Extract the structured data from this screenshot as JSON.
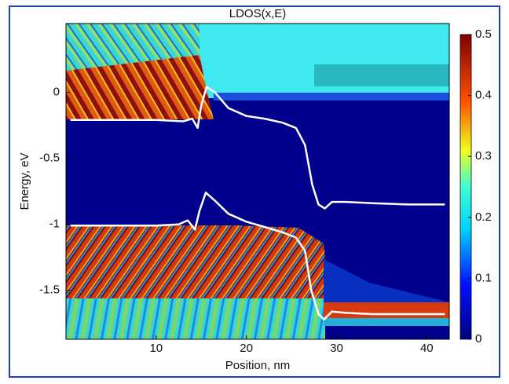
{
  "chart_data": {
    "type": "line",
    "title": "LDOS(x,E)",
    "x_label": "Position, nm",
    "y_label": "Energy, eV",
    "xlim": [
      0,
      42.5
    ],
    "ylim": [
      -1.87,
      0.52
    ],
    "xticks": [
      10,
      20,
      30,
      40
    ],
    "yticks": [
      -1.5,
      -1,
      -0.5,
      0
    ],
    "colorbar": {
      "lim": [
        0,
        0.5
      ],
      "ticks": [
        0,
        0.1,
        0.2,
        0.3,
        0.4,
        0.5
      ]
    },
    "series": [
      {
        "color": "#ffffff",
        "x": [
          0.5,
          5,
          10,
          13,
          14,
          14.6,
          15,
          15.6,
          16.5,
          18,
          20,
          22,
          24,
          25.5,
          26.5,
          27.3,
          28,
          28.7,
          29.5,
          31,
          34,
          38,
          42
        ],
        "values": [
          -0.21,
          -0.21,
          -0.21,
          -0.22,
          -0.2,
          -0.27,
          -0.1,
          0.04,
          0.0,
          -0.12,
          -0.18,
          -0.2,
          -0.23,
          -0.27,
          -0.4,
          -0.7,
          -0.85,
          -0.88,
          -0.83,
          -0.83,
          -0.84,
          -0.85,
          -0.85
        ]
      },
      {
        "color": "#ffffff",
        "x": [
          0.5,
          5,
          10,
          12.5,
          13.5,
          14.3,
          14.8,
          15.5,
          16.5,
          18,
          20,
          22,
          24,
          25.5,
          26.5,
          27.2,
          28,
          28.6,
          29.5,
          31,
          34,
          38,
          42
        ],
        "values": [
          -1.01,
          -1.01,
          -1.01,
          -1.0,
          -0.97,
          -1.04,
          -0.9,
          -0.76,
          -0.82,
          -0.92,
          -0.98,
          -1.02,
          -1.06,
          -1.1,
          -1.2,
          -1.5,
          -1.68,
          -1.72,
          -1.66,
          -1.67,
          -1.68,
          -1.68,
          -1.68
        ]
      }
    ]
  }
}
